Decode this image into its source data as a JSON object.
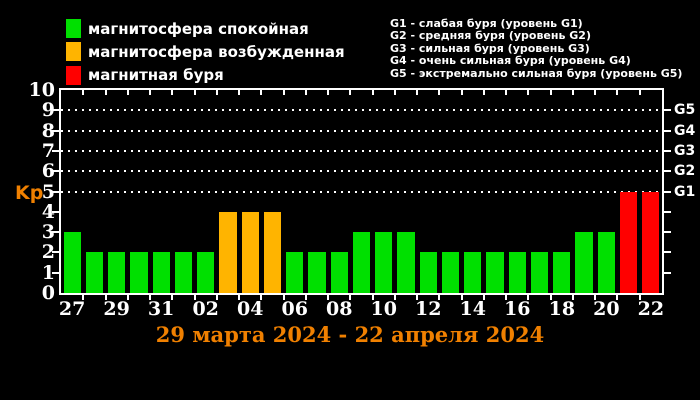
{
  "colors": {
    "quiet": "#00e000",
    "disturbed": "#ffb400",
    "storm": "#ff0000",
    "axis": "#ffffff",
    "background": "#000000",
    "accent_orange": "#f08000"
  },
  "legend_left": {
    "items": [
      {
        "status": "quiet",
        "color": "#00e000",
        "label": "магнитосфера спокойная"
      },
      {
        "status": "disturbed",
        "color": "#ffb400",
        "label": "магнитосфера возбужденная"
      },
      {
        "status": "storm",
        "color": "#ff0000",
        "label": "магнитная буря"
      }
    ]
  },
  "legend_right": {
    "items": [
      "G1 - слабая буря (уровень G1)",
      "G2 - средняя буря (уровень G2)",
      "G3 - сильная буря (уровень G3)",
      "G4 - очень сильная буря (уровень G4)",
      "G5 - экстремально сильная буря (уровень G5)"
    ]
  },
  "chart_data": {
    "type": "bar",
    "title": "29 марта 2024 - 22 апреля 2024",
    "ylabel": "Kp",
    "ylim": [
      0,
      10
    ],
    "y_ticks": [
      0,
      1,
      2,
      3,
      4,
      5,
      6,
      7,
      8,
      9,
      10
    ],
    "x_tick_labels": [
      "27",
      "29",
      "31",
      "02",
      "04",
      "06",
      "08",
      "10",
      "12",
      "14",
      "16",
      "18",
      "20",
      "22"
    ],
    "gridlines": [
      {
        "kp": 5,
        "label": "G1"
      },
      {
        "kp": 6,
        "label": "G2"
      },
      {
        "kp": 7,
        "label": "G3"
      },
      {
        "kp": 8,
        "label": "G4"
      },
      {
        "kp": 9,
        "label": "G5"
      }
    ],
    "grid_style": "dotted horizontal lines at Kp 5-9 only",
    "legend_position": "top",
    "bars": [
      {
        "day": "27",
        "kp": 3,
        "status": "quiet"
      },
      {
        "day": "28",
        "kp": 2,
        "status": "quiet"
      },
      {
        "day": "29",
        "kp": 2,
        "status": "quiet"
      },
      {
        "day": "30",
        "kp": 2,
        "status": "quiet"
      },
      {
        "day": "31",
        "kp": 2,
        "status": "quiet"
      },
      {
        "day": "01",
        "kp": 2,
        "status": "quiet"
      },
      {
        "day": "02",
        "kp": 2,
        "status": "quiet"
      },
      {
        "day": "03",
        "kp": 4,
        "status": "disturbed"
      },
      {
        "day": "04",
        "kp": 4,
        "status": "disturbed"
      },
      {
        "day": "05",
        "kp": 4,
        "status": "disturbed"
      },
      {
        "day": "06",
        "kp": 2,
        "status": "quiet"
      },
      {
        "day": "07",
        "kp": 2,
        "status": "quiet"
      },
      {
        "day": "08",
        "kp": 2,
        "status": "quiet"
      },
      {
        "day": "09",
        "kp": 3,
        "status": "quiet"
      },
      {
        "day": "10",
        "kp": 3,
        "status": "quiet"
      },
      {
        "day": "11",
        "kp": 3,
        "status": "quiet"
      },
      {
        "day": "12",
        "kp": 2,
        "status": "quiet"
      },
      {
        "day": "13",
        "kp": 2,
        "status": "quiet"
      },
      {
        "day": "14",
        "kp": 2,
        "status": "quiet"
      },
      {
        "day": "15",
        "kp": 2,
        "status": "quiet"
      },
      {
        "day": "16",
        "kp": 2,
        "status": "quiet"
      },
      {
        "day": "17",
        "kp": 2,
        "status": "quiet"
      },
      {
        "day": "18",
        "kp": 2,
        "status": "quiet"
      },
      {
        "day": "19",
        "kp": 3,
        "status": "quiet"
      },
      {
        "day": "20",
        "kp": 3,
        "status": "quiet"
      },
      {
        "day": "21",
        "kp": 5,
        "status": "storm"
      },
      {
        "day": "22",
        "kp": 5,
        "status": "storm"
      }
    ]
  }
}
